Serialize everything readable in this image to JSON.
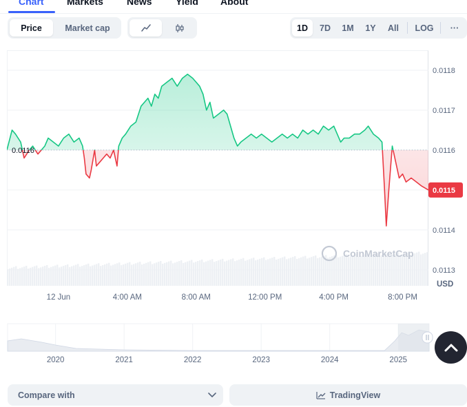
{
  "tabs": [
    {
      "label": "Chart",
      "active": true
    },
    {
      "label": "Markets"
    },
    {
      "label": "News"
    },
    {
      "label": "Yield"
    },
    {
      "label": "About"
    }
  ],
  "toolbar": {
    "metric_tabs": [
      {
        "label": "Price",
        "active": true
      },
      {
        "label": "Market cap"
      }
    ],
    "chart_type_icons": [
      "line-chart-icon",
      "candlestick-icon"
    ],
    "ranges": [
      "1D",
      "7D",
      "1M",
      "1Y",
      "All",
      "LOG"
    ],
    "active_range": "1D",
    "more_label": "···"
  },
  "chart_data": {
    "type": "line",
    "baseline": 0.0116,
    "baseline_label": "0.0116",
    "current_price": 0.0115,
    "current_price_label": "0.0115",
    "y_ticks": [
      "0.0118",
      "0.0117",
      "0.0116",
      "0.0115",
      "0.0114",
      "0.0113"
    ],
    "y_tick_values": [
      0.0118,
      0.0117,
      0.0116,
      0.0115,
      0.0114,
      0.0113
    ],
    "ylim": [
      0.01126,
      0.01185
    ],
    "y_unit": "USD",
    "x_ticks": [
      "12 Jun",
      "4:00 AM",
      "8:00 AM",
      "12:00 PM",
      "4:00 PM",
      "8:00 PM"
    ],
    "x_tick_hours": [
      0,
      4,
      8,
      12,
      16,
      20
    ],
    "xlim_hours": [
      -3,
      21.5
    ],
    "points": [
      [
        -3.0,
        0.0116
      ],
      [
        -2.7,
        0.01165
      ],
      [
        -2.5,
        0.01164
      ],
      [
        -2.2,
        0.01162
      ],
      [
        -2.0,
        0.01158
      ],
      [
        -1.7,
        0.0116
      ],
      [
        -1.5,
        0.01161
      ],
      [
        -1.2,
        0.01159
      ],
      [
        -0.8,
        0.01161
      ],
      [
        -0.6,
        0.01163
      ],
      [
        -0.3,
        0.01162
      ],
      [
        0.0,
        0.01161
      ],
      [
        0.3,
        0.01163
      ],
      [
        0.6,
        0.01164
      ],
      [
        0.9,
        0.01162
      ],
      [
        1.2,
        0.01163
      ],
      [
        1.4,
        0.01161
      ],
      [
        1.5,
        0.01158
      ],
      [
        1.6,
        0.01154
      ],
      [
        1.8,
        0.01153
      ],
      [
        1.9,
        0.01155
      ],
      [
        2.1,
        0.0116
      ],
      [
        2.2,
        0.01156
      ],
      [
        2.4,
        0.01157
      ],
      [
        2.6,
        0.01158
      ],
      [
        2.8,
        0.01159
      ],
      [
        3.0,
        0.01158
      ],
      [
        3.2,
        0.0116
      ],
      [
        3.4,
        0.01156
      ],
      [
        3.5,
        0.01161
      ],
      [
        3.7,
        0.01163
      ],
      [
        3.9,
        0.01164
      ],
      [
        4.2,
        0.01166
      ],
      [
        4.5,
        0.01167
      ],
      [
        4.8,
        0.01171
      ],
      [
        5.0,
        0.01172
      ],
      [
        5.2,
        0.01173
      ],
      [
        5.4,
        0.01171
      ],
      [
        5.6,
        0.01174
      ],
      [
        5.8,
        0.01173
      ],
      [
        6.0,
        0.01176
      ],
      [
        6.3,
        0.01177
      ],
      [
        6.6,
        0.01178
      ],
      [
        6.9,
        0.01176
      ],
      [
        7.2,
        0.01178
      ],
      [
        7.5,
        0.01179
      ],
      [
        7.8,
        0.01178
      ],
      [
        8.0,
        0.01177
      ],
      [
        8.2,
        0.01176
      ],
      [
        8.4,
        0.01174
      ],
      [
        8.6,
        0.0117
      ],
      [
        8.8,
        0.01172
      ],
      [
        9.0,
        0.01168
      ],
      [
        9.3,
        0.01169
      ],
      [
        9.6,
        0.0117
      ],
      [
        9.8,
        0.01169
      ],
      [
        10.0,
        0.01166
      ],
      [
        10.2,
        0.01163
      ],
      [
        10.4,
        0.01161
      ],
      [
        10.6,
        0.01162
      ],
      [
        10.9,
        0.01163
      ],
      [
        11.2,
        0.01164
      ],
      [
        11.5,
        0.01163
      ],
      [
        11.8,
        0.01164
      ],
      [
        12.1,
        0.01163
      ],
      [
        12.4,
        0.01162
      ],
      [
        12.7,
        0.01163
      ],
      [
        13.0,
        0.01164
      ],
      [
        13.3,
        0.01163
      ],
      [
        13.6,
        0.01164
      ],
      [
        13.9,
        0.01163
      ],
      [
        14.2,
        0.01165
      ],
      [
        14.5,
        0.01164
      ],
      [
        14.8,
        0.01165
      ],
      [
        15.1,
        0.01164
      ],
      [
        15.4,
        0.01166
      ],
      [
        15.7,
        0.01165
      ],
      [
        16.0,
        0.01166
      ],
      [
        16.2,
        0.01164
      ],
      [
        16.4,
        0.01162
      ],
      [
        16.6,
        0.01163
      ],
      [
        16.9,
        0.01163
      ],
      [
        17.2,
        0.01164
      ],
      [
        17.5,
        0.01164
      ],
      [
        17.8,
        0.01165
      ],
      [
        18.0,
        0.01166
      ],
      [
        18.3,
        0.01164
      ],
      [
        18.6,
        0.01163
      ],
      [
        18.8,
        0.01162
      ],
      [
        18.95,
        0.0115
      ],
      [
        19.05,
        0.01141
      ],
      [
        19.2,
        0.0115
      ],
      [
        19.4,
        0.01161
      ],
      [
        19.6,
        0.01157
      ],
      [
        19.8,
        0.01153
      ],
      [
        20.0,
        0.01154
      ],
      [
        20.2,
        0.01152
      ],
      [
        20.5,
        0.01153
      ],
      [
        20.8,
        0.01152
      ],
      [
        21.1,
        0.01151
      ],
      [
        21.5,
        0.0115
      ]
    ]
  },
  "overview": {
    "x_ticks": [
      "2020",
      "2021",
      "2022",
      "2023",
      "2024",
      "2025"
    ],
    "x_tick_years": [
      2020,
      2021,
      2022,
      2023,
      2024,
      2025
    ],
    "xlim_years": [
      2019.3,
      2025.45
    ]
  },
  "watermark": "CoinMarketCap",
  "bottom": {
    "compare_label": "Compare with",
    "tradingview_label": "TradingView"
  },
  "colors": {
    "accent": "#3861fb",
    "up": "#16c784",
    "down": "#ea3943",
    "text": "#0d1421",
    "muted": "#58667e"
  }
}
